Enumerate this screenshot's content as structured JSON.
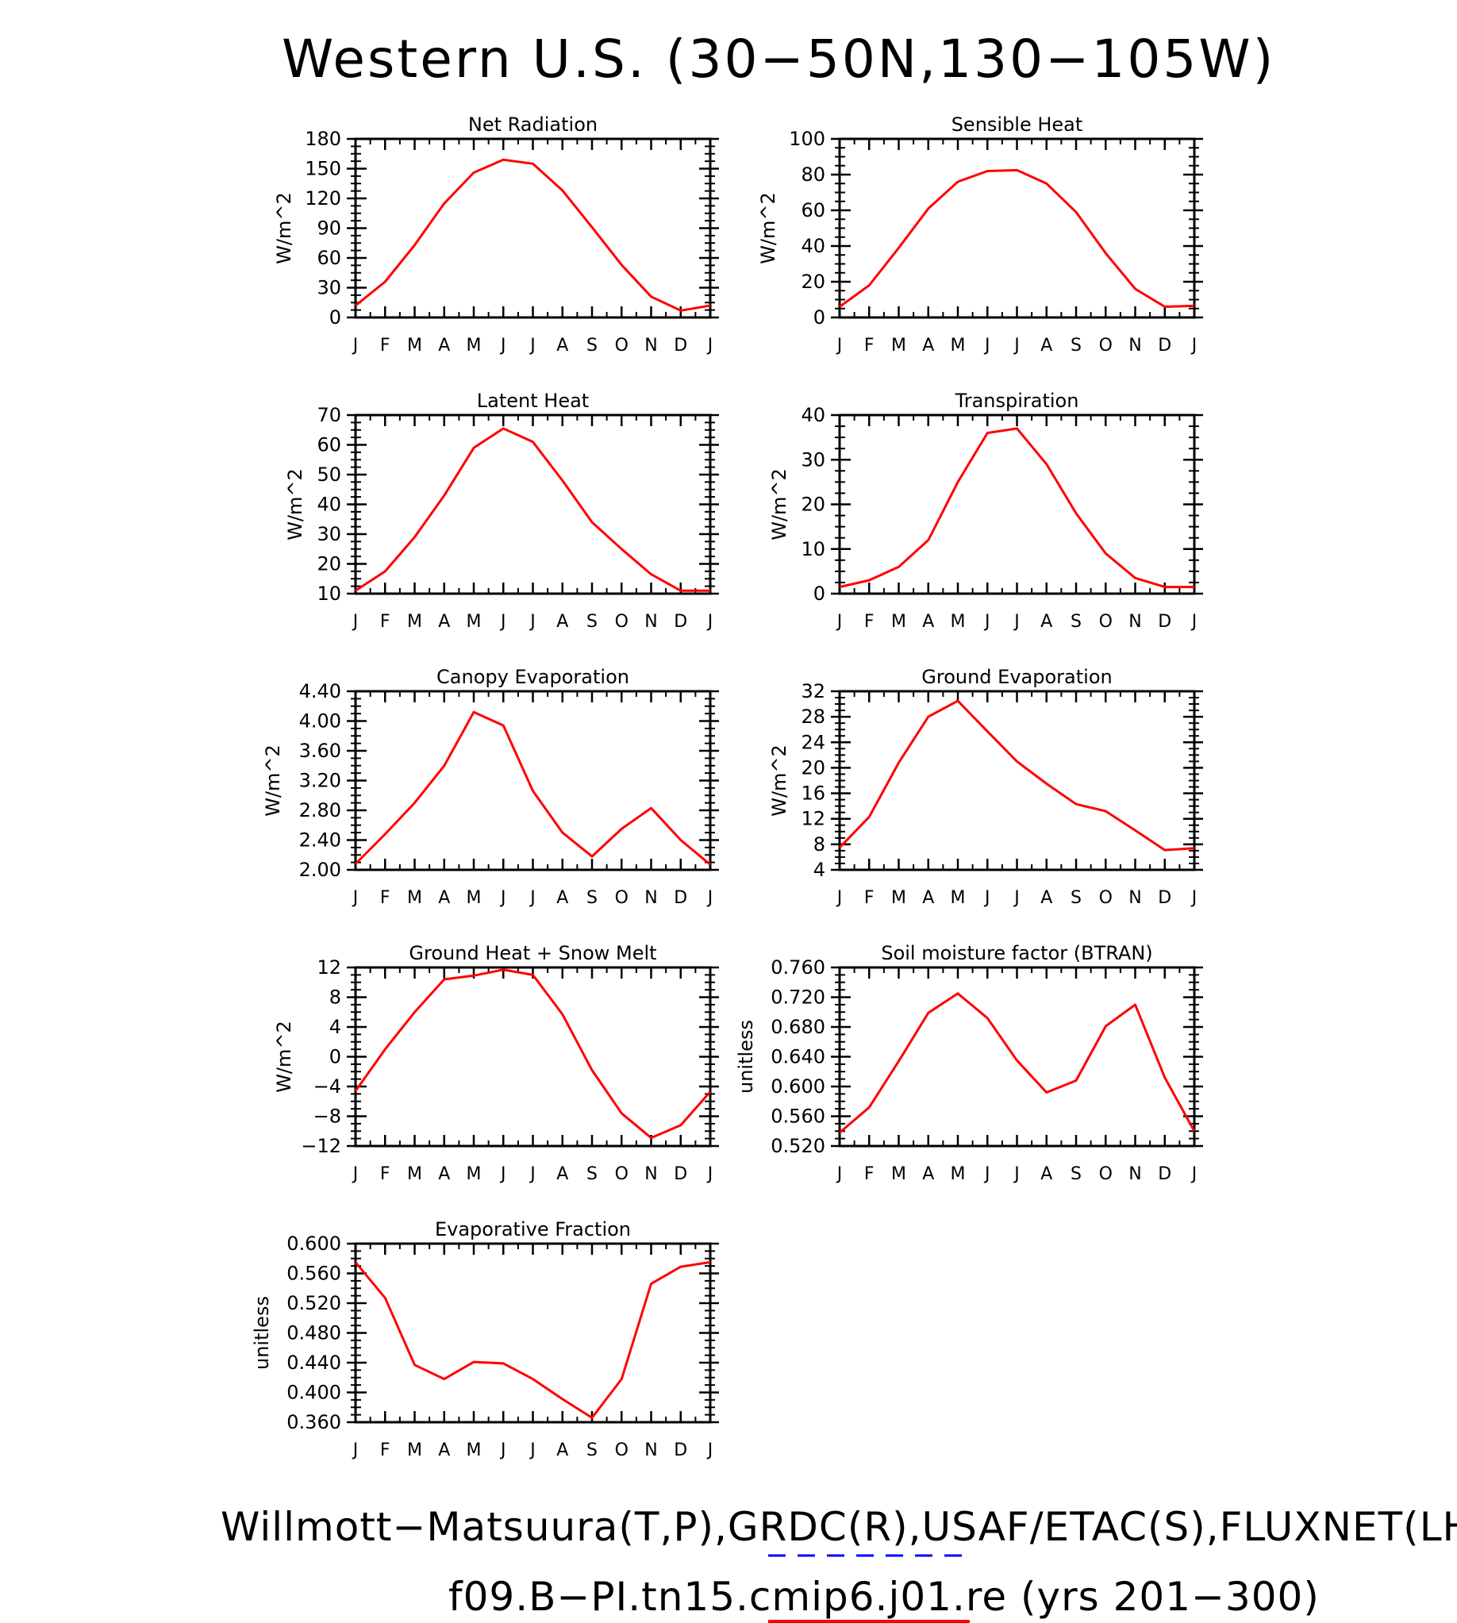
{
  "figure": {
    "title": "Western U.S. (30−50N,130−105W)",
    "footer_line1": "Willmott−Matsuura(T,P),GRDC(R),USAF/ETAC(S),FLUXNET(LHF,GPP)",
    "footer_line2": "f09.B−PI.tn15.cmip6.j01.re (yrs 201−300)",
    "colors": {
      "series": "#ff0000",
      "legend_dash": "#0000ff",
      "axes": "#000000"
    }
  },
  "chart_data": [
    {
      "type": "line",
      "title": "Net Radiation",
      "ylabel": "W/m^2",
      "categories": [
        "J",
        "F",
        "M",
        "A",
        "M",
        "J",
        "J",
        "A",
        "S",
        "O",
        "N",
        "D",
        "J"
      ],
      "yticks": [
        "0",
        "30",
        "60",
        "90",
        "120",
        "150",
        "180"
      ],
      "ylim": [
        0,
        180
      ],
      "values": [
        12,
        36,
        73,
        115,
        146,
        159,
        155,
        128,
        91,
        53,
        21,
        7,
        12
      ]
    },
    {
      "type": "line",
      "title": "Sensible Heat",
      "ylabel": "W/m^2",
      "categories": [
        "J",
        "F",
        "M",
        "A",
        "M",
        "J",
        "J",
        "A",
        "S",
        "O",
        "N",
        "D",
        "J"
      ],
      "yticks": [
        "0",
        "20",
        "40",
        "60",
        "80",
        "100"
      ],
      "ylim": [
        0,
        100
      ],
      "values": [
        6,
        18,
        39,
        61,
        76,
        82,
        82.5,
        75,
        59,
        36,
        16,
        6,
        6.5
      ]
    },
    {
      "type": "line",
      "title": "Latent Heat",
      "ylabel": "W/m^2",
      "categories": [
        "J",
        "F",
        "M",
        "A",
        "M",
        "J",
        "J",
        "A",
        "S",
        "O",
        "N",
        "D",
        "J"
      ],
      "yticks": [
        "10",
        "20",
        "30",
        "40",
        "50",
        "60",
        "70"
      ],
      "ylim": [
        10,
        70
      ],
      "values": [
        11,
        17.5,
        29,
        43,
        59,
        65.5,
        61,
        48,
        34,
        25,
        16.5,
        11,
        11
      ]
    },
    {
      "type": "line",
      "title": "Transpiration",
      "ylabel": "W/m^2",
      "categories": [
        "J",
        "F",
        "M",
        "A",
        "M",
        "J",
        "J",
        "A",
        "S",
        "O",
        "N",
        "D",
        "J"
      ],
      "yticks": [
        "0",
        "10",
        "20",
        "30",
        "40"
      ],
      "ylim": [
        0,
        40
      ],
      "values": [
        1.5,
        3,
        6,
        12,
        25,
        36,
        37,
        29,
        18,
        9,
        3.5,
        1.5,
        1.5
      ]
    },
    {
      "type": "line",
      "title": "Canopy Evaporation",
      "ylabel": "W/m^2",
      "categories": [
        "J",
        "F",
        "M",
        "A",
        "M",
        "J",
        "J",
        "A",
        "S",
        "O",
        "N",
        "D",
        "J"
      ],
      "yticks": [
        "2.00",
        "2.40",
        "2.80",
        "3.20",
        "3.60",
        "4.00",
        "4.40"
      ],
      "ylim": [
        2.0,
        4.4
      ],
      "values": [
        2.08,
        2.48,
        2.9,
        3.4,
        4.12,
        3.94,
        3.06,
        2.5,
        2.18,
        2.55,
        2.83,
        2.4,
        2.07
      ]
    },
    {
      "type": "line",
      "title": "Ground Evaporation",
      "ylabel": "W/m^2",
      "categories": [
        "J",
        "F",
        "M",
        "A",
        "M",
        "J",
        "J",
        "A",
        "S",
        "O",
        "N",
        "D",
        "J"
      ],
      "yticks": [
        "4",
        "8",
        "12",
        "16",
        "20",
        "24",
        "28",
        "32"
      ],
      "ylim": [
        4,
        32
      ],
      "values": [
        7.5,
        12.3,
        20.8,
        28,
        30.5,
        25.7,
        21,
        17.5,
        14.3,
        13.2,
        10.2,
        7.1,
        7.4
      ]
    },
    {
      "type": "line",
      "title": "Ground Heat + Snow Melt",
      "ylabel": "W/m^2",
      "categories": [
        "J",
        "F",
        "M",
        "A",
        "M",
        "J",
        "J",
        "A",
        "S",
        "O",
        "N",
        "D",
        "J"
      ],
      "yticks": [
        "−12",
        "−8",
        "−4",
        "0",
        "4",
        "8",
        "12"
      ],
      "ylim": [
        -12,
        12
      ],
      "values": [
        -4.6,
        1,
        6,
        10.4,
        10.9,
        11.7,
        11,
        5.7,
        -1.8,
        -7.6,
        -10.9,
        -9.2,
        -4.7
      ]
    },
    {
      "type": "line",
      "title": "Soil moisture factor (BTRAN)",
      "ylabel": "unitless",
      "categories": [
        "J",
        "F",
        "M",
        "A",
        "M",
        "J",
        "J",
        "A",
        "S",
        "O",
        "N",
        "D",
        "J"
      ],
      "yticks": [
        "0.520",
        "0.560",
        "0.600",
        "0.640",
        "0.680",
        "0.720",
        "0.760"
      ],
      "ylim": [
        0.52,
        0.76
      ],
      "values": [
        0.538,
        0.572,
        0.634,
        0.699,
        0.725,
        0.692,
        0.635,
        0.592,
        0.608,
        0.681,
        0.71,
        0.612,
        0.54
      ]
    },
    {
      "type": "line",
      "title": "Evaporative Fraction",
      "ylabel": "unitless",
      "categories": [
        "J",
        "F",
        "M",
        "A",
        "M",
        "J",
        "J",
        "A",
        "S",
        "O",
        "N",
        "D",
        "J"
      ],
      "yticks": [
        "0.360",
        "0.400",
        "0.440",
        "0.480",
        "0.520",
        "0.560",
        "0.600"
      ],
      "ylim": [
        0.36,
        0.6
      ],
      "values": [
        0.575,
        0.527,
        0.437,
        0.418,
        0.441,
        0.439,
        0.418,
        0.391,
        0.366,
        0.418,
        0.546,
        0.569,
        0.575
      ]
    }
  ]
}
